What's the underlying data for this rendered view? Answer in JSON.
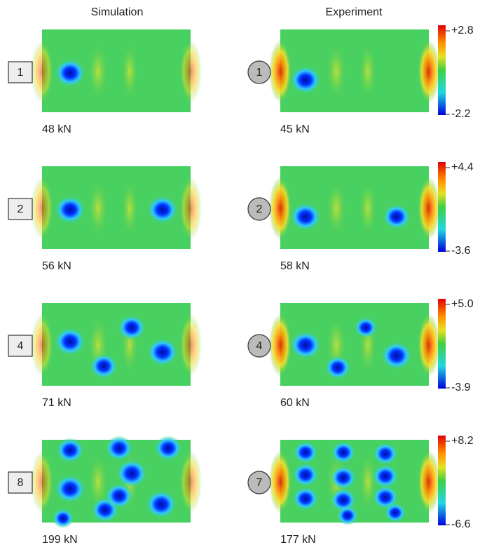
{
  "headers": [
    "Simulation",
    "Experiment"
  ],
  "rows": [
    {
      "sim_mode": "1",
      "sim_load": "48 kN",
      "exp_mode": "1",
      "exp_load": "45 kN",
      "scale_max": "+2.8",
      "scale_min": "-2.2"
    },
    {
      "sim_mode": "2",
      "sim_load": "56 kN",
      "exp_mode": "2",
      "exp_load": "58 kN",
      "scale_max": "+4.4",
      "scale_min": "-3.6"
    },
    {
      "sim_mode": "4",
      "sim_load": "71 kN",
      "exp_mode": "4",
      "exp_load": "60 kN",
      "scale_max": "+5.0",
      "scale_min": "-3.9"
    },
    {
      "sim_mode": "8",
      "sim_load": "199 kN",
      "exp_mode": "7",
      "exp_load": "177 kN",
      "scale_max": "+8.2",
      "scale_min": "-6.6"
    }
  ]
}
